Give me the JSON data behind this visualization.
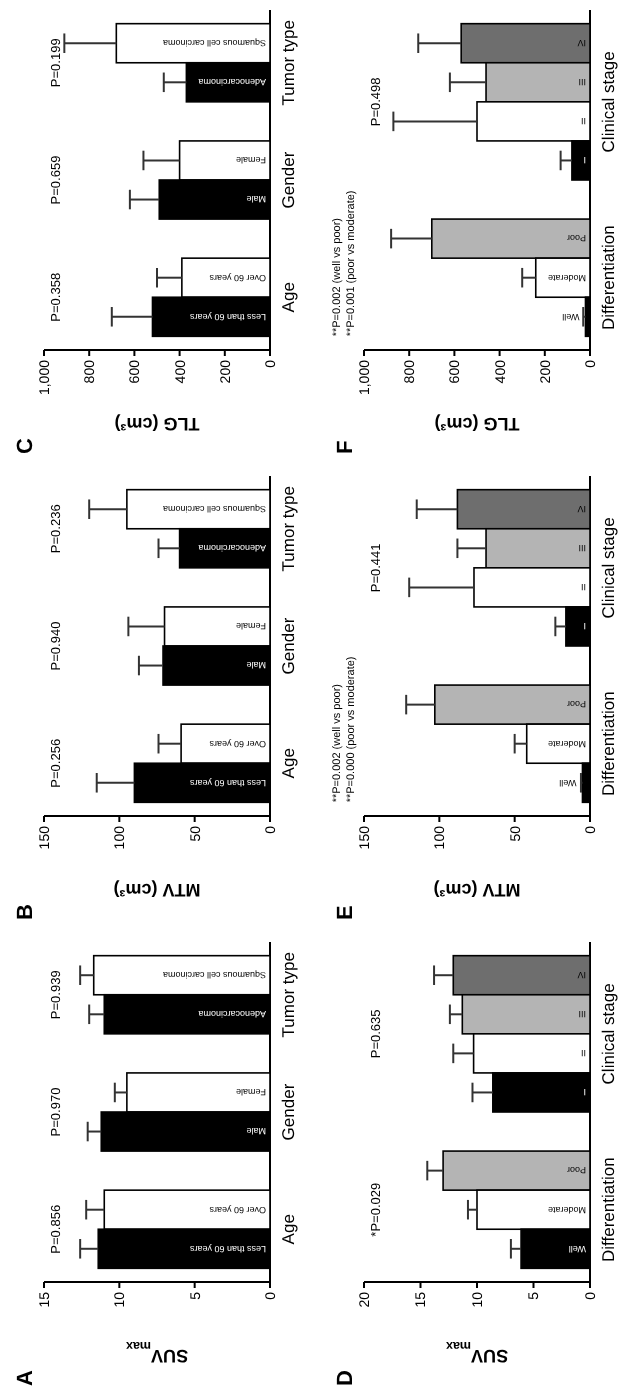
{
  "chart_data": [
    {
      "type": "bar",
      "orientation": "horizontal",
      "title": "A",
      "xlabel": "SUV$_{max}$",
      "categories": [
        "Squamous cell carcinoma",
        "Adenocarcinoma",
        null,
        "Female",
        "Male",
        null,
        "Over 60 years",
        "Less than 60 years"
      ],
      "values": [
        11.7,
        11.0,
        null,
        9.5,
        11.2,
        null,
        11.0,
        11.4
      ],
      "colors": [
        "#ffffff",
        "#000000",
        null,
        "#ffffff",
        "#000000",
        null,
        "#ffffff",
        "#000000"
      ],
      "errors": [
        [
          11.7,
          12.6
        ],
        [
          11.0,
          12.0
        ],
        null,
        [
          9.5,
          10.3
        ],
        [
          11.2,
          12.1
        ],
        null,
        [
          11.0,
          12.2
        ],
        [
          11.4,
          12.6
        ]
      ],
      "xlim": [
        15,
        0
      ],
      "xticks": [
        0,
        5,
        10,
        15
      ],
      "annotations": [
        "Tumor type",
        "Gender",
        "Age",
        "P=0.939",
        "P=0.970",
        "P=0.856"
      ]
    },
    {
      "type": "bar",
      "orientation": "horizontal",
      "title": "B",
      "xlabel": "MTV (cm³)",
      "categories": [
        "Squamous cell carcinoma",
        "Adenocarcinoma",
        null,
        "Female",
        "Male",
        null,
        "Over 60 years",
        "Less than 60 years"
      ],
      "values": [
        95,
        60,
        null,
        70,
        71,
        null,
        59,
        90
      ],
      "colors": [
        "#ffffff",
        "#000000",
        null,
        "#ffffff",
        "#000000",
        null,
        "#ffffff",
        "#000000"
      ],
      "errors": [
        [
          95,
          120
        ],
        [
          60,
          74
        ],
        null,
        [
          70,
          94
        ],
        [
          71,
          87
        ],
        null,
        [
          59,
          74
        ],
        [
          90,
          115
        ]
      ],
      "xlim": [
        150,
        0
      ],
      "xticks": [
        0,
        50,
        100,
        150
      ],
      "annotations": [
        "Tumor type",
        "Gender",
        "Age",
        "P=0.236",
        "P=0.940",
        "P=0.256"
      ]
    },
    {
      "type": "bar",
      "orientation": "horizontal",
      "title": "C",
      "xlabel": "TLG (cm³)",
      "categories": [
        "Squamous cell carcinoma",
        "Adenocarcinoma",
        null,
        "Female",
        "Male",
        null,
        "Over 60 years",
        "Less than 60 years"
      ],
      "values": [
        680,
        370,
        null,
        400,
        490,
        null,
        390,
        520
      ],
      "colors": [
        "#ffffff",
        "#000000",
        null,
        "#ffffff",
        "#000000",
        null,
        "#ffffff",
        "#000000"
      ],
      "errors": [
        [
          680,
          910
        ],
        [
          370,
          470
        ],
        null,
        [
          400,
          560
        ],
        [
          490,
          620
        ],
        null,
        [
          390,
          500
        ],
        [
          520,
          700
        ]
      ],
      "xlim": [
        1000,
        0
      ],
      "xticks": [
        0,
        200,
        400,
        600,
        800,
        {
          "value": 1000,
          "label": "1,000"
        }
      ],
      "annotations": [
        "Tumor type",
        "Gender",
        "Age",
        "P=0.199",
        "P=0.659",
        "P=0.358"
      ]
    },
    {
      "type": "bar",
      "orientation": "horizontal",
      "title": "D",
      "xlabel": "SUV$_{max}$",
      "categories": [
        "IV",
        "III",
        "II",
        "I",
        null,
        "Poor",
        "Moderate",
        "Well"
      ],
      "values": [
        12.1,
        11.3,
        10.3,
        8.6,
        null,
        13.0,
        10.0,
        6.1
      ],
      "colors": [
        "#6e6e6e",
        "#b4b4b4",
        "#ffffff",
        "#000000",
        null,
        "#b4b4b4",
        "#ffffff",
        "#000000"
      ],
      "errors": [
        [
          12.1,
          13.8
        ],
        [
          11.3,
          12.4
        ],
        [
          10.3,
          12.1
        ],
        [
          8.6,
          10.4
        ],
        null,
        [
          13.0,
          14.4
        ],
        [
          10.0,
          10.8
        ],
        [
          6.1,
          7.0
        ]
      ],
      "xlim": [
        20,
        0
      ],
      "xticks": [
        0,
        5,
        10,
        15,
        20
      ],
      "annotations": [
        "Clinical stage",
        "Differentiation",
        "P=0.635",
        "*P=0.029"
      ]
    },
    {
      "type": "bar",
      "orientation": "horizontal",
      "title": "E",
      "xlabel": "MTV (cm³)",
      "categories": [
        "IV",
        "III",
        "II",
        "I",
        null,
        "Poor",
        "Moderate",
        "Well"
      ],
      "values": [
        88,
        69,
        77,
        16,
        null,
        103,
        42,
        5
      ],
      "colors": [
        "#6e6e6e",
        "#b4b4b4",
        "#ffffff",
        "#000000",
        null,
        "#b4b4b4",
        "#ffffff",
        "#000000"
      ],
      "errors": [
        [
          88,
          115
        ],
        [
          69,
          88
        ],
        [
          77,
          120
        ],
        [
          16,
          23
        ],
        null,
        [
          103,
          122
        ],
        [
          42,
          50
        ],
        [
          5,
          6
        ]
      ],
      "xlim": [
        150,
        0
      ],
      "xticks": [
        0,
        50,
        100,
        150
      ],
      "annotations": [
        "Clinical stage",
        "Differentiation",
        "P=0.441",
        "**P=0.002 (well vs poor)",
        "**P=0.000 (poor vs moderate)"
      ]
    },
    {
      "type": "bar",
      "orientation": "horizontal",
      "title": "F",
      "xlabel": "TLG (cm³)",
      "categories": [
        "IV",
        "III",
        "II",
        "I",
        null,
        "Poor",
        "Moderate",
        "Well"
      ],
      "values": [
        570,
        460,
        500,
        80,
        null,
        700,
        240,
        20
      ],
      "colors": [
        "#6e6e6e",
        "#b4b4b4",
        "#ffffff",
        "#000000",
        null,
        "#b4b4b4",
        "#ffffff",
        "#000000"
      ],
      "errors": [
        [
          570,
          760
        ],
        [
          460,
          620
        ],
        [
          500,
          870
        ],
        [
          80,
          130
        ],
        null,
        [
          700,
          880
        ],
        [
          240,
          300
        ],
        [
          20,
          30
        ]
      ],
      "xlim": [
        1000,
        0
      ],
      "xticks": [
        0,
        200,
        400,
        600,
        800,
        {
          "value": 1000,
          "label": "1,000"
        }
      ],
      "annotations": [
        "Clinical stage",
        "Differentiation",
        "P=0.498",
        "**P=0.002 (well vs poor)",
        "**P=0.001 (poor vs moderate)"
      ]
    }
  ]
}
